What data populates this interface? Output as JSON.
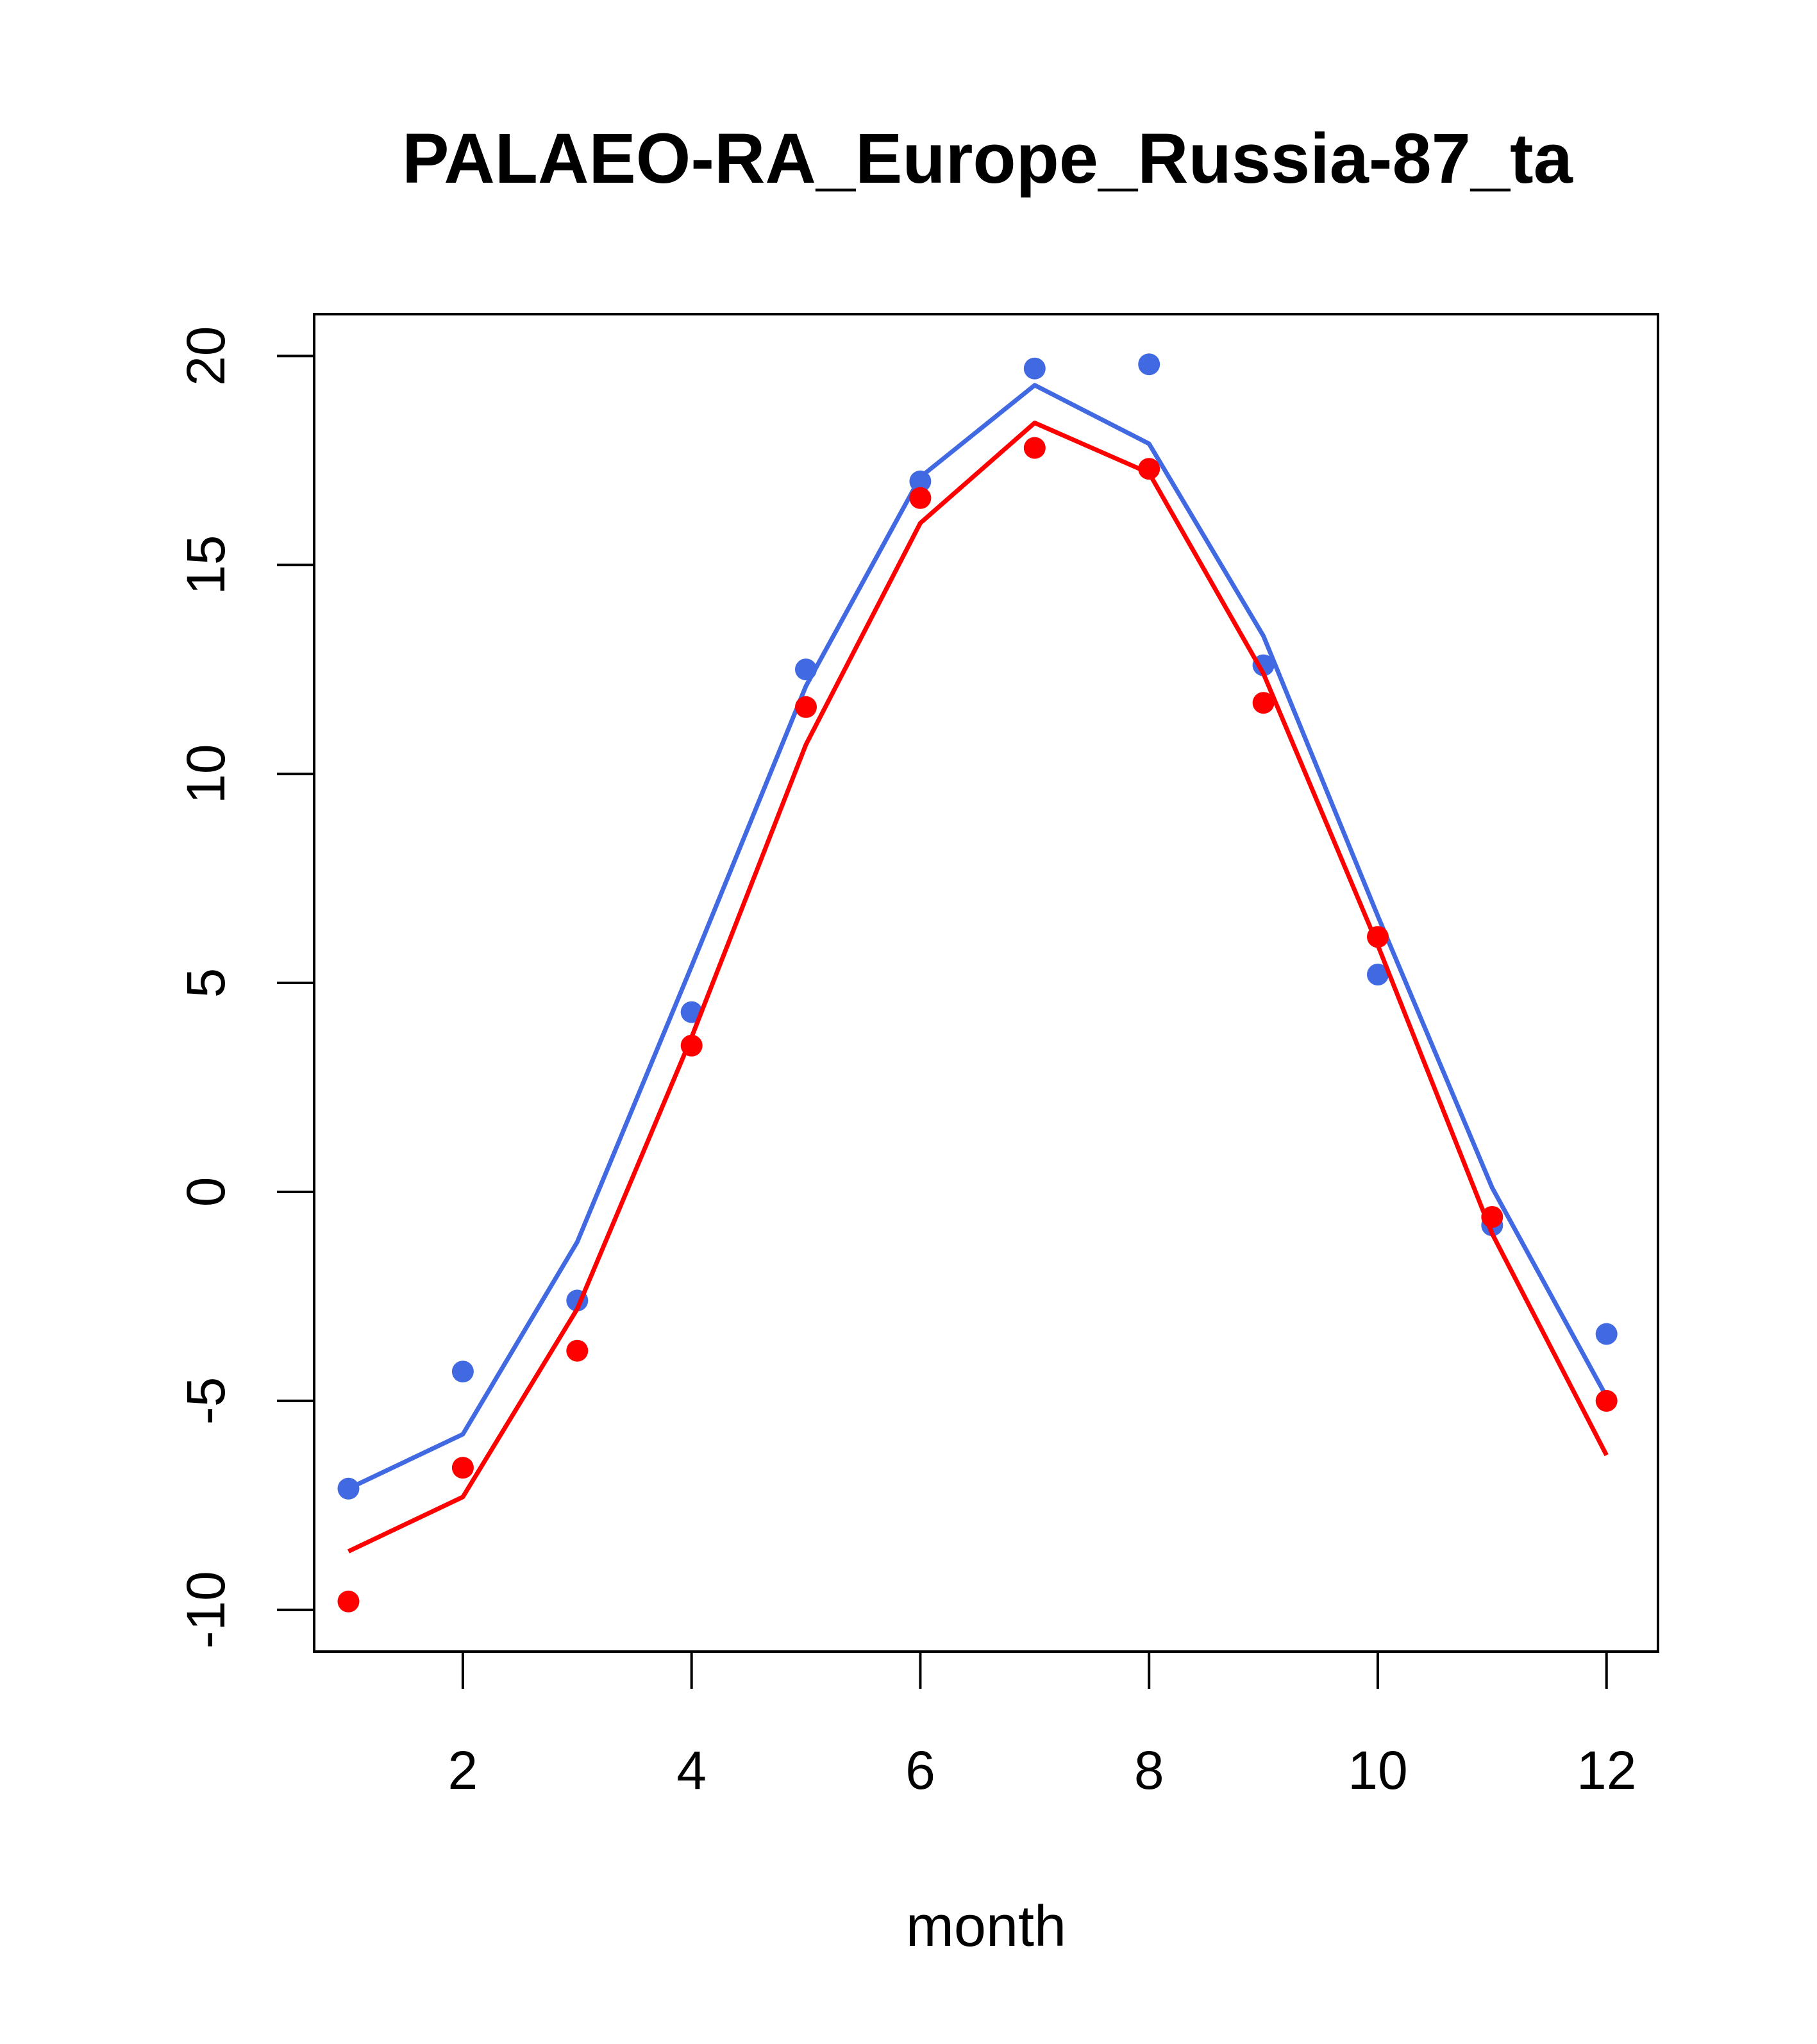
{
  "chart_data": {
    "type": "line",
    "title": "PALAEO-RA_Europe_Russia-87_ta",
    "xlabel": "month",
    "ylabel": "",
    "xlim": [
      0.7,
      12.45
    ],
    "ylim": [
      -11.0,
      21.0
    ],
    "x_ticks": [
      2,
      4,
      6,
      8,
      10,
      12
    ],
    "y_ticks": [
      -10,
      -5,
      0,
      5,
      10,
      15,
      20
    ],
    "grid": false,
    "legend": "none",
    "colors": {
      "blue": "#4169E1",
      "red": "#FF0000"
    },
    "series": [
      {
        "color": "#4169E1",
        "x": [
          1,
          2,
          3,
          4,
          5,
          6,
          7,
          8,
          9,
          10,
          11,
          12
        ],
        "line": [
          -7.1,
          -5.8,
          -1.2,
          5.4,
          12.1,
          17.1,
          19.3,
          17.9,
          13.3,
          6.6,
          0.1,
          -4.9
        ],
        "points": [
          -7.1,
          -4.3,
          -2.6,
          4.3,
          12.5,
          17.0,
          19.7,
          19.8,
          12.6,
          5.2,
          -0.8,
          -3.4
        ]
      },
      {
        "color": "#FF0000",
        "x": [
          1,
          2,
          3,
          4,
          5,
          6,
          7,
          8,
          9,
          10,
          11,
          12
        ],
        "line": [
          -8.6,
          -7.3,
          -2.8,
          3.7,
          10.7,
          16.0,
          18.4,
          17.2,
          12.4,
          5.9,
          -1.0,
          -6.3
        ],
        "points": [
          -9.8,
          -6.6,
          -3.8,
          3.5,
          11.6,
          16.6,
          17.8,
          17.3,
          11.7,
          6.1,
          -0.6,
          -5.0
        ]
      }
    ]
  }
}
